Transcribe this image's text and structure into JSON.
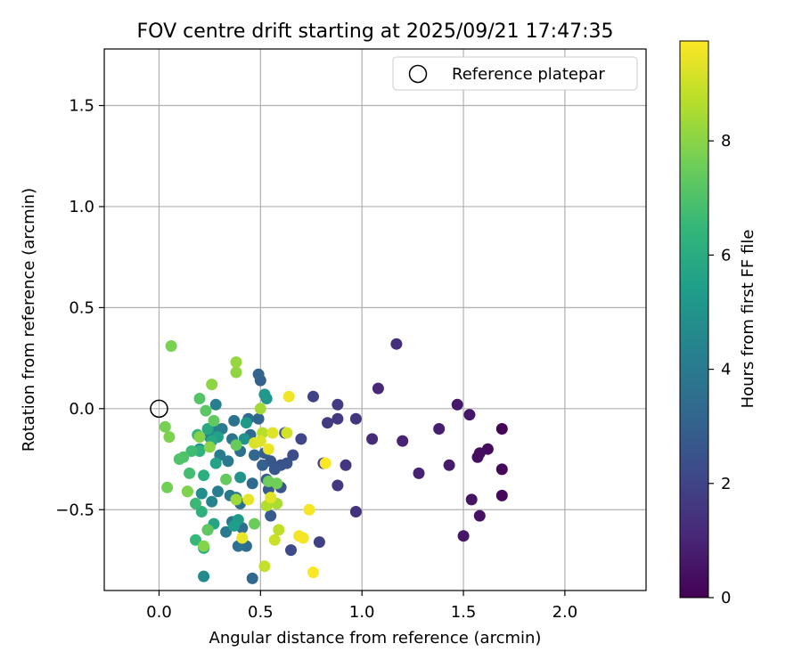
{
  "chart_data": {
    "type": "scatter",
    "title": "FOV centre drift starting at 2025/09/21 17:47:35",
    "xlabel": "Angular distance from reference (arcmin)",
    "ylabel": "Rotation from reference (arcmin)",
    "xlim": [
      -0.27,
      2.4
    ],
    "ylim": [
      -0.9,
      1.78
    ],
    "x_ticks": [
      0.0,
      0.5,
      1.0,
      1.5,
      2.0
    ],
    "x_tick_labels": [
      "0.0",
      "0.5",
      "1.0",
      "1.5",
      "2.0"
    ],
    "y_ticks": [
      -0.5,
      0.0,
      0.5,
      1.0,
      1.5
    ],
    "y_tick_labels": [
      "−0.5",
      "0.0",
      "0.5",
      "1.0",
      "1.5"
    ],
    "grid": true,
    "legend": {
      "position": "top-right",
      "entries": [
        "Reference platepar"
      ]
    },
    "reference_point": {
      "x": 0.0,
      "y": 0.0,
      "label": "Reference platepar"
    },
    "colorbar": {
      "label": "Hours from first FF file",
      "range": [
        0,
        9.75
      ],
      "ticks": [
        0,
        2,
        4,
        6,
        8
      ],
      "tick_labels": [
        "0",
        "2",
        "4",
        "6",
        "8"
      ],
      "colormap": "viridis",
      "stops": [
        "#440154",
        "#482878",
        "#3e4989",
        "#31688e",
        "#26828e",
        "#1f9e89",
        "#35b779",
        "#6ece58",
        "#b5de2b",
        "#fde725"
      ]
    },
    "points": [
      {
        "x": 1.69,
        "y": -0.1,
        "t": 0.1
      },
      {
        "x": 1.69,
        "y": -0.3,
        "t": 0.2
      },
      {
        "x": 1.69,
        "y": -0.43,
        "t": 0.2
      },
      {
        "x": 1.62,
        "y": -0.2,
        "t": 0.3
      },
      {
        "x": 1.58,
        "y": -0.22,
        "t": 0.35
      },
      {
        "x": 1.57,
        "y": -0.24,
        "t": 0.4
      },
      {
        "x": 1.58,
        "y": -0.53,
        "t": 0.45
      },
      {
        "x": 1.54,
        "y": -0.45,
        "t": 0.5
      },
      {
        "x": 1.5,
        "y": -0.63,
        "t": 0.55
      },
      {
        "x": 1.53,
        "y": -0.03,
        "t": 0.6
      },
      {
        "x": 1.47,
        "y": 0.02,
        "t": 0.65
      },
      {
        "x": 1.43,
        "y": -0.28,
        "t": 0.7
      },
      {
        "x": 1.38,
        "y": -0.1,
        "t": 0.8
      },
      {
        "x": 1.28,
        "y": -0.32,
        "t": 0.9
      },
      {
        "x": 1.2,
        "y": -0.16,
        "t": 0.95
      },
      {
        "x": 1.08,
        "y": 0.1,
        "t": 1.1
      },
      {
        "x": 1.05,
        "y": -0.15,
        "t": 1.2
      },
      {
        "x": 1.17,
        "y": 0.32,
        "t": 1.3
      },
      {
        "x": 0.97,
        "y": -0.51,
        "t": 1.4
      },
      {
        "x": 0.97,
        "y": -0.05,
        "t": 1.5
      },
      {
        "x": 0.92,
        "y": -0.28,
        "t": 1.55
      },
      {
        "x": 0.88,
        "y": -0.38,
        "t": 1.6
      },
      {
        "x": 0.88,
        "y": -0.05,
        "t": 1.65
      },
      {
        "x": 0.88,
        "y": 0.02,
        "t": 1.7
      },
      {
        "x": 0.83,
        "y": -0.07,
        "t": 1.75
      },
      {
        "x": 0.81,
        "y": -0.27,
        "t": 1.8
      },
      {
        "x": 0.79,
        "y": -0.66,
        "t": 1.9
      },
      {
        "x": 0.76,
        "y": 0.06,
        "t": 2.0
      },
      {
        "x": 0.7,
        "y": -0.15,
        "t": 2.1
      },
      {
        "x": 0.65,
        "y": -0.7,
        "t": 2.2
      },
      {
        "x": 0.66,
        "y": -0.23,
        "t": 2.3
      },
      {
        "x": 0.62,
        "y": -0.12,
        "t": 2.4
      },
      {
        "x": 0.63,
        "y": -0.27,
        "t": 2.5
      },
      {
        "x": 0.6,
        "y": -0.28,
        "t": 2.55
      },
      {
        "x": 0.6,
        "y": -0.39,
        "t": 2.6
      },
      {
        "x": 0.57,
        "y": -0.3,
        "t": 2.65
      },
      {
        "x": 0.55,
        "y": -0.26,
        "t": 2.7
      },
      {
        "x": 0.54,
        "y": -0.4,
        "t": 2.75
      },
      {
        "x": 0.55,
        "y": -0.53,
        "t": 2.8
      },
      {
        "x": 0.53,
        "y": -0.35,
        "t": 2.85
      },
      {
        "x": 0.52,
        "y": -0.22,
        "t": 2.9
      },
      {
        "x": 0.51,
        "y": -0.28,
        "t": 3.0
      },
      {
        "x": 0.5,
        "y": 0.14,
        "t": 3.05
      },
      {
        "x": 0.49,
        "y": 0.17,
        "t": 3.1
      },
      {
        "x": 0.49,
        "y": -0.05,
        "t": 3.15
      },
      {
        "x": 0.47,
        "y": -0.23,
        "t": 3.2
      },
      {
        "x": 0.46,
        "y": -0.84,
        "t": 3.25
      },
      {
        "x": 0.46,
        "y": -0.37,
        "t": 3.3
      },
      {
        "x": 0.45,
        "y": -0.13,
        "t": 3.35
      },
      {
        "x": 0.44,
        "y": -0.05,
        "t": 3.4
      },
      {
        "x": 0.43,
        "y": -0.68,
        "t": 3.45
      },
      {
        "x": 0.41,
        "y": -0.59,
        "t": 3.5
      },
      {
        "x": 0.4,
        "y": -0.47,
        "t": 3.55
      },
      {
        "x": 0.4,
        "y": -0.21,
        "t": 3.6
      },
      {
        "x": 0.39,
        "y": -0.68,
        "t": 3.65
      },
      {
        "x": 0.38,
        "y": -0.44,
        "t": 3.7
      },
      {
        "x": 0.37,
        "y": -0.06,
        "t": 3.75
      },
      {
        "x": 0.36,
        "y": -0.15,
        "t": 3.8
      },
      {
        "x": 0.36,
        "y": -0.56,
        "t": 3.85
      },
      {
        "x": 0.35,
        "y": -0.43,
        "t": 3.9
      },
      {
        "x": 0.34,
        "y": -0.26,
        "t": 3.95
      },
      {
        "x": 0.33,
        "y": -0.61,
        "t": 4.0
      },
      {
        "x": 0.31,
        "y": -0.1,
        "t": 4.05
      },
      {
        "x": 0.3,
        "y": -0.23,
        "t": 4.1
      },
      {
        "x": 0.29,
        "y": -0.41,
        "t": 4.15
      },
      {
        "x": 0.28,
        "y": 0.02,
        "t": 4.2
      },
      {
        "x": 0.27,
        "y": -0.09,
        "t": 4.3
      },
      {
        "x": 0.26,
        "y": -0.46,
        "t": 4.4
      },
      {
        "x": 0.25,
        "y": -0.14,
        "t": 4.5
      },
      {
        "x": 0.24,
        "y": -0.6,
        "t": 4.6
      },
      {
        "x": 0.22,
        "y": -0.83,
        "t": 4.7
      },
      {
        "x": 0.21,
        "y": -0.42,
        "t": 4.8
      },
      {
        "x": 0.2,
        "y": -0.2,
        "t": 4.9
      },
      {
        "x": 0.4,
        "y": -0.34,
        "t": 5.0
      },
      {
        "x": 0.42,
        "y": -0.15,
        "t": 5.0
      },
      {
        "x": 0.53,
        "y": 0.05,
        "t": 5.1
      },
      {
        "x": 0.52,
        "y": 0.07,
        "t": 5.2
      },
      {
        "x": 0.43,
        "y": -0.07,
        "t": 5.2
      },
      {
        "x": 0.39,
        "y": -0.55,
        "t": 5.3
      },
      {
        "x": 0.37,
        "y": -0.58,
        "t": 5.4
      },
      {
        "x": 0.29,
        "y": -0.14,
        "t": 5.5
      },
      {
        "x": 0.28,
        "y": -0.27,
        "t": 5.6
      },
      {
        "x": 0.27,
        "y": -0.57,
        "t": 5.7
      },
      {
        "x": 0.26,
        "y": -0.16,
        "t": 5.8
      },
      {
        "x": 0.24,
        "y": -0.1,
        "t": 5.9
      },
      {
        "x": 0.22,
        "y": -0.69,
        "t": 6.0
      },
      {
        "x": 0.22,
        "y": -0.33,
        "t": 6.1
      },
      {
        "x": 0.21,
        "y": -0.51,
        "t": 6.2
      },
      {
        "x": 0.2,
        "y": -0.21,
        "t": 6.3
      },
      {
        "x": 0.19,
        "y": -0.13,
        "t": 6.4
      },
      {
        "x": 0.18,
        "y": -0.65,
        "t": 6.5
      },
      {
        "x": 0.18,
        "y": -0.47,
        "t": 6.6
      },
      {
        "x": 0.16,
        "y": -0.21,
        "t": 6.7
      },
      {
        "x": 0.15,
        "y": -0.32,
        "t": 6.8
      },
      {
        "x": 0.14,
        "y": -0.41,
        "t": 6.9
      },
      {
        "x": 0.12,
        "y": -0.24,
        "t": 7.0
      },
      {
        "x": 0.1,
        "y": -0.25,
        "t": 7.05
      },
      {
        "x": 0.2,
        "y": 0.05,
        "t": 7.1
      },
      {
        "x": 0.23,
        "y": -0.01,
        "t": 7.2
      },
      {
        "x": 0.24,
        "y": -0.6,
        "t": 7.3
      },
      {
        "x": 0.27,
        "y": -0.06,
        "t": 7.35
      },
      {
        "x": 0.33,
        "y": -0.35,
        "t": 7.4
      },
      {
        "x": 0.38,
        "y": -0.18,
        "t": 7.45
      },
      {
        "x": 0.47,
        "y": -0.57,
        "t": 7.5
      },
      {
        "x": 0.54,
        "y": -0.36,
        "t": 7.55
      },
      {
        "x": 0.58,
        "y": -0.37,
        "t": 7.6
      },
      {
        "x": 0.04,
        "y": -0.39,
        "t": 7.65
      },
      {
        "x": 0.03,
        "y": -0.09,
        "t": 7.7
      },
      {
        "x": 0.06,
        "y": 0.31,
        "t": 7.75
      },
      {
        "x": 0.05,
        "y": -0.14,
        "t": 7.8
      },
      {
        "x": 0.14,
        "y": -0.41,
        "t": 7.85
      },
      {
        "x": 0.22,
        "y": -0.68,
        "t": 7.9
      },
      {
        "x": 0.2,
        "y": -0.14,
        "t": 7.95
      },
      {
        "x": 0.25,
        "y": -0.19,
        "t": 8.0
      },
      {
        "x": 0.26,
        "y": 0.12,
        "t": 8.05
      },
      {
        "x": 0.38,
        "y": 0.18,
        "t": 8.1
      },
      {
        "x": 0.38,
        "y": 0.23,
        "t": 8.2
      },
      {
        "x": 0.38,
        "y": -0.45,
        "t": 8.3
      },
      {
        "x": 0.5,
        "y": -0.0,
        "t": 8.4
      },
      {
        "x": 0.58,
        "y": -0.47,
        "t": 8.5
      },
      {
        "x": 0.53,
        "y": -0.48,
        "t": 8.6
      },
      {
        "x": 0.51,
        "y": -0.12,
        "t": 8.7
      },
      {
        "x": 0.59,
        "y": -0.6,
        "t": 8.8
      },
      {
        "x": 0.52,
        "y": -0.78,
        "t": 8.9
      },
      {
        "x": 0.57,
        "y": -0.65,
        "t": 9.0
      },
      {
        "x": 0.63,
        "y": -0.12,
        "t": 9.1
      },
      {
        "x": 0.47,
        "y": -0.17,
        "t": 9.2
      },
      {
        "x": 0.5,
        "y": -0.16,
        "t": 9.25
      },
      {
        "x": 0.56,
        "y": -0.12,
        "t": 9.3
      },
      {
        "x": 0.55,
        "y": -0.44,
        "t": 9.35
      },
      {
        "x": 0.44,
        "y": -0.45,
        "t": 9.4
      },
      {
        "x": 0.41,
        "y": -0.64,
        "t": 9.45
      },
      {
        "x": 0.54,
        "y": -0.2,
        "t": 9.5
      },
      {
        "x": 0.64,
        "y": 0.06,
        "t": 9.55
      },
      {
        "x": 0.69,
        "y": -0.63,
        "t": 9.6
      },
      {
        "x": 0.71,
        "y": -0.64,
        "t": 9.62
      },
      {
        "x": 0.74,
        "y": -0.5,
        "t": 9.65
      },
      {
        "x": 0.76,
        "y": -0.81,
        "t": 9.7
      },
      {
        "x": 0.82,
        "y": -0.27,
        "t": 9.72
      }
    ]
  }
}
